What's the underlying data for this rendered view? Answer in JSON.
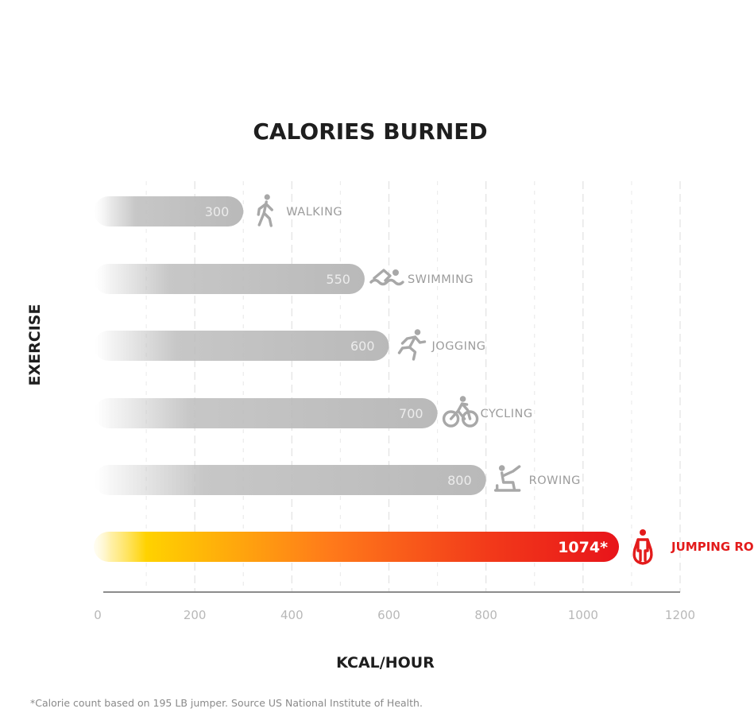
{
  "chart_data": {
    "type": "bar",
    "orientation": "horizontal",
    "title": "CALORIES BURNED",
    "xlabel": "KCAL/HOUR",
    "ylabel": "EXERCISE",
    "xlim": [
      0,
      1200
    ],
    "x_ticks": [
      "0",
      "200",
      "400",
      "600",
      "800",
      "1000",
      "1200"
    ],
    "grid": "vertical dashed",
    "categories": [
      "WALKING",
      "SWIMMING",
      "JOGGING",
      "CYCLING",
      "ROWING",
      "JUMPING ROPE"
    ],
    "values": [
      300,
      550,
      600,
      700,
      800,
      1074
    ],
    "value_labels": [
      "300",
      "550",
      "600",
      "700",
      "800",
      "1074*"
    ],
    "icons": [
      "walking-icon",
      "swimming-icon",
      "jogging-icon",
      "cycling-icon",
      "rowing-icon",
      "jumping-rope-icon"
    ],
    "highlight_index": 5,
    "colors": {
      "bar": "#bdbdbd",
      "highlight_start": "#ffd200",
      "highlight_mid": "#ff6a1a",
      "highlight_end": "#e8141a",
      "category_text": "#9c9c9c",
      "highlight_text": "#e31b1b"
    },
    "footnote": "*Calorie count based on 195 LB jumper. Source US National Institute of Health."
  }
}
